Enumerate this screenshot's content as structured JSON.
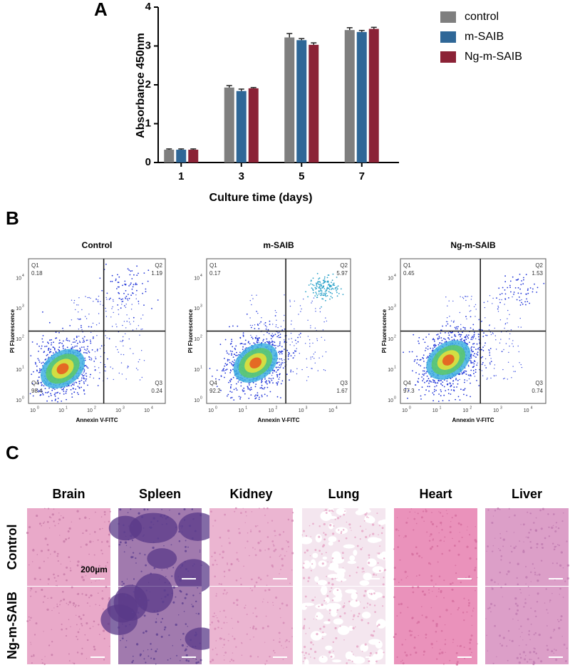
{
  "chart_data": {
    "type": "bar",
    "panel_label": "A",
    "categories": [
      "1",
      "3",
      "5",
      "7"
    ],
    "series": [
      {
        "name": "control",
        "color": "#7f7f7f",
        "values": [
          0.33,
          1.93,
          3.22,
          3.41
        ],
        "errors": [
          0.02,
          0.05,
          0.1,
          0.06
        ]
      },
      {
        "name": "m-SAIB",
        "color": "#2f6797",
        "values": [
          0.33,
          1.84,
          3.15,
          3.36
        ],
        "errors": [
          0.02,
          0.05,
          0.04,
          0.04
        ]
      },
      {
        "name": "Ng-m-SAIB",
        "color": "#8b2236",
        "values": [
          0.33,
          1.91,
          3.03,
          3.44
        ],
        "errors": [
          0.02,
          0.02,
          0.05,
          0.04
        ]
      }
    ],
    "ylim": [
      0,
      4
    ],
    "yticks": [
      0,
      1,
      2,
      3,
      4
    ],
    "x_label": "Culture time (days)",
    "y_label": "Absorbance 450nm"
  },
  "flow": {
    "panel_label": "B",
    "x_label": "Annexin V-FITC",
    "y_label": "PI Fluorescence",
    "tick_base": "10",
    "tick_exponents": [
      "0",
      "1",
      "2",
      "3",
      "4"
    ],
    "plots": [
      {
        "title": "Control",
        "quadrants": [
          {
            "name": "Q1",
            "value": 0.18
          },
          {
            "name": "Q2",
            "value": 1.19
          },
          {
            "name": "Q3",
            "value": 0.24
          },
          {
            "name": "Q4",
            "value": 98.4
          }
        ]
      },
      {
        "title": "m-SAIB",
        "quadrants": [
          {
            "name": "Q1",
            "value": 0.17
          },
          {
            "name": "Q2",
            "value": 5.97
          },
          {
            "name": "Q3",
            "value": 1.67
          },
          {
            "name": "Q4",
            "value": 92.2
          }
        ]
      },
      {
        "title": "Ng-m-SAIB",
        "quadrants": [
          {
            "name": "Q1",
            "value": 0.45
          },
          {
            "name": "Q2",
            "value": 1.53
          },
          {
            "name": "Q3",
            "value": 0.74
          },
          {
            "name": "Q4",
            "value": 97.3
          }
        ]
      }
    ]
  },
  "histology": {
    "panel_label": "C",
    "columns": [
      "Brain",
      "Spleen",
      "Kidney",
      "Lung",
      "Heart",
      "Liver"
    ],
    "rows": [
      "Control",
      "Ng-m-SAIB"
    ],
    "scale_bar": "200µm"
  }
}
